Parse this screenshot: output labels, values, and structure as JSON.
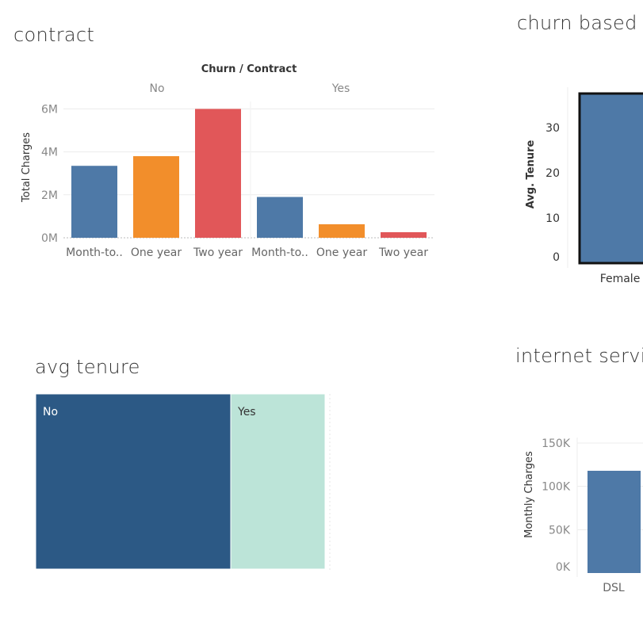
{
  "titles": {
    "contract": "contract",
    "churn_gender": "churn based c",
    "avg_tenure": "avg tenure",
    "internet": "internet servi"
  },
  "chart_data": [
    {
      "id": "contract",
      "type": "bar",
      "header": "Churn / Contract",
      "groups": [
        "No",
        "Yes"
      ],
      "categories": [
        "Month-to..",
        "One year",
        "Two year",
        "Month-to..",
        "One year",
        "Two year"
      ],
      "values": [
        3.35,
        3.8,
        6.0,
        1.9,
        0.63,
        0.26
      ],
      "value_unit": "M",
      "ylabel": "Total Charges",
      "ylim": [
        0,
        6.2
      ],
      "yticks": [
        "0M",
        "2M",
        "4M",
        "6M"
      ],
      "ytick_values": [
        0,
        2,
        4,
        6
      ],
      "colors": [
        "#4e79a7",
        "#f28e2b",
        "#e15759",
        "#4e79a7",
        "#f28e2b",
        "#e15759"
      ],
      "grid": true
    },
    {
      "id": "churn_gender",
      "type": "bar",
      "categories": [
        "Female"
      ],
      "values": [
        37.5
      ],
      "ylabel": "Avg. Tenure",
      "ylim": [
        0,
        37.5
      ],
      "yticks": [
        "0",
        "10",
        "20",
        "30"
      ],
      "ytick_values": [
        0,
        10,
        20,
        30
      ],
      "colors": [
        "#4e79a7"
      ]
    },
    {
      "id": "avg_tenure",
      "type": "heatmap",
      "categories": [
        "No",
        "Yes"
      ],
      "values": [
        246,
        119
      ],
      "colors": [
        "#2c5985",
        "#bce4d8"
      ]
    },
    {
      "id": "internet",
      "type": "bar",
      "categories": [
        "DSL"
      ],
      "values": [
        118000
      ],
      "ylabel": "Monthly Charges",
      "ylim": [
        0,
        150000
      ],
      "yticks": [
        "0K",
        "50K",
        "100K",
        "150K"
      ],
      "ytick_values": [
        0,
        50000,
        100000,
        150000
      ],
      "colors": [
        "#4e79a7"
      ],
      "grid": true
    }
  ]
}
